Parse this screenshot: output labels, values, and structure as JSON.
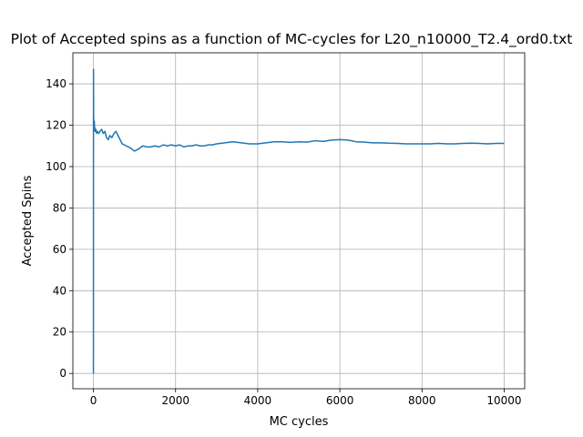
{
  "chart_data": {
    "type": "line",
    "title": "Plot of Accepted spins as a function of MC-cycles for L20_n10000_T2.4_ord0.txt",
    "xlabel": "MC cycles",
    "ylabel": "Accepted Spins",
    "xlim": [
      -500,
      10500
    ],
    "ylim": [
      -7.4,
      155
    ],
    "xticks": [
      0,
      2000,
      4000,
      6000,
      8000,
      10000
    ],
    "yticks": [
      0,
      20,
      40,
      60,
      80,
      100,
      120,
      140
    ],
    "grid": true,
    "series": [
      {
        "name": "",
        "color": "#1f77b4",
        "x": [
          0,
          2,
          5,
          10,
          20,
          30,
          40,
          60,
          80,
          100,
          130,
          160,
          200,
          240,
          280,
          320,
          360,
          400,
          450,
          500,
          550,
          600,
          650,
          700,
          800,
          900,
          1000,
          1100,
          1200,
          1300,
          1400,
          1500,
          1600,
          1700,
          1800,
          1900,
          2000,
          2100,
          2200,
          2300,
          2400,
          2500,
          2600,
          2700,
          2800,
          2900,
          3000,
          3200,
          3400,
          3600,
          3800,
          4000,
          4200,
          4400,
          4600,
          4800,
          5000,
          5200,
          5400,
          5600,
          5800,
          6000,
          6200,
          6400,
          6600,
          6800,
          7000,
          7200,
          7400,
          7600,
          7800,
          8000,
          8200,
          8400,
          8600,
          8800,
          9000,
          9200,
          9400,
          9600,
          9800,
          10000
        ],
        "y": [
          0,
          147,
          125,
          120,
          122,
          119,
          117,
          118,
          116,
          117,
          116,
          117,
          118,
          116,
          117,
          114,
          113,
          115,
          114,
          116,
          117,
          115,
          113,
          111,
          110,
          109,
          107.5,
          108.5,
          110,
          109.5,
          109.5,
          110,
          109.5,
          110.5,
          110,
          110.5,
          110,
          110.5,
          109.5,
          110,
          110,
          110.5,
          110,
          110,
          110.5,
          110.5,
          111,
          111.5,
          112,
          111.5,
          111,
          111,
          111.5,
          112,
          112,
          111.7,
          112,
          111.8,
          112.5,
          112.2,
          112.8,
          113,
          112.8,
          112,
          111.8,
          111.5,
          111.5,
          111.3,
          111.2,
          111,
          111,
          111,
          111,
          111.2,
          111,
          111,
          111.2,
          111.3,
          111.2,
          111,
          111.2,
          111.2
        ]
      }
    ]
  }
}
